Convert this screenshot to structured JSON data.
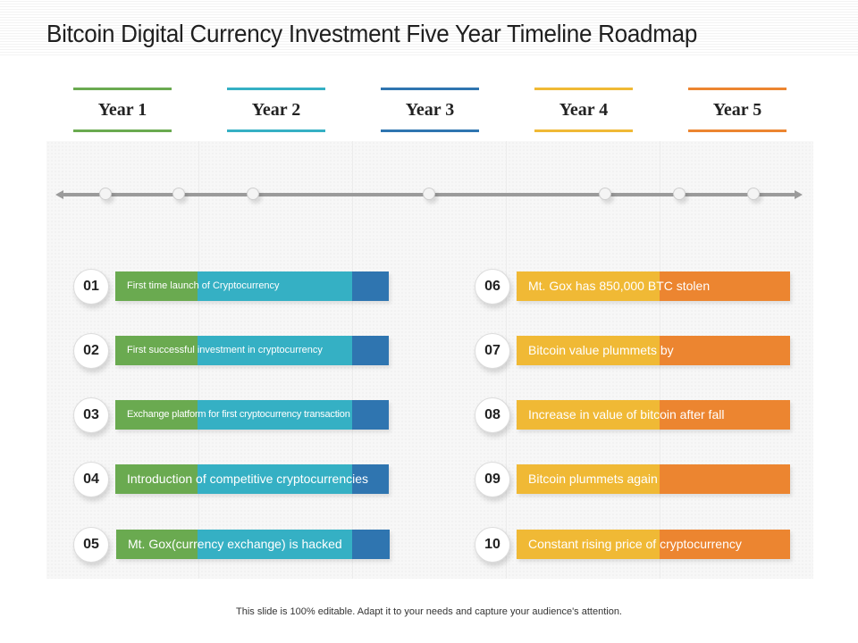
{
  "title": "Bitcoin Digital Currency Investment Five Year Timeline Roadmap",
  "years": [
    {
      "label": "Year 1",
      "color": "#6aaa50"
    },
    {
      "label": "Year 2",
      "color": "#35b0c4"
    },
    {
      "label": "Year 3",
      "color": "#2f75b0"
    },
    {
      "label": "Year 4",
      "color": "#f0b935"
    },
    {
      "label": "Year 5",
      "color": "#ec8530"
    }
  ],
  "left_items": [
    {
      "num": "01",
      "text": "First time launch of Cryptocurrency"
    },
    {
      "num": "02",
      "text": "First successful investment in cryptocurrency"
    },
    {
      "num": "03",
      "text": "Exchange platform for first cryptocurrency transaction"
    },
    {
      "num": "04",
      "text": "Introduction of competitive cryptocurrencies"
    },
    {
      "num": "05",
      "text": "Mt. Gox(currency exchange) is hacked"
    }
  ],
  "right_items": [
    {
      "num": "06",
      "text": "Mt. Gox has 850,000 BTC stolen"
    },
    {
      "num": "07",
      "text": "Bitcoin value plummets by"
    },
    {
      "num": "08",
      "text": "Increase in value of bitcoin after fall"
    },
    {
      "num": "09",
      "text": "Bitcoin plummets again"
    },
    {
      "num": "10",
      "text": "Constant rising price of cryptocurrency"
    }
  ],
  "footer": "This slide is 100% editable. Adapt it to your needs and capture your audience's attention."
}
